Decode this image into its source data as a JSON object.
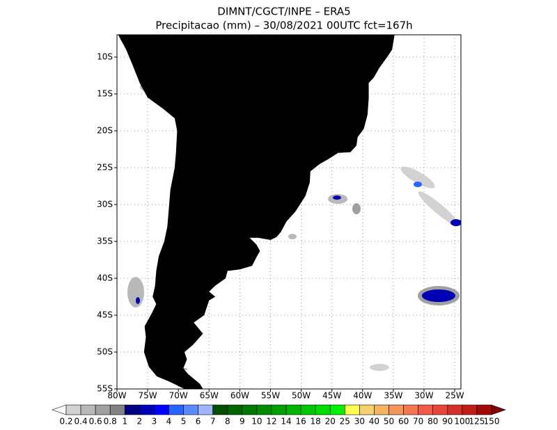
{
  "header": {
    "line1": "DIMNT/CGCT/INPE –  ERA5",
    "line2": "Precipitacao (mm) – 30/08/2021 00UTC fct=167h"
  },
  "map": {
    "lat_labels": [
      "10S",
      "15S",
      "20S",
      "25S",
      "30S",
      "35S",
      "40S",
      "45S",
      "50S",
      "55S"
    ],
    "lon_labels": [
      "80W",
      "75W",
      "70W",
      "65W",
      "60W",
      "55W",
      "50W",
      "45W",
      "40W",
      "35W",
      "30W",
      "25W"
    ]
  },
  "colorbar": {
    "labels": [
      "0.2",
      "0.4",
      "0.6",
      "0.8",
      "1",
      "2",
      "3",
      "4",
      "5",
      "6",
      "7",
      "8",
      "9",
      "10",
      "12",
      "14",
      "16",
      "18",
      "20",
      "25",
      "30",
      "40",
      "50",
      "60",
      "70",
      "80",
      "90",
      "100",
      "125",
      "150"
    ],
    "colors": [
      "#ffffff",
      "#d2d2d2",
      "#b9b9b9",
      "#a0a0a0",
      "#828282",
      "#000080",
      "#0000b4",
      "#0000ff",
      "#2864ff",
      "#5a8cff",
      "#a0b4ff",
      "#005000",
      "#006400",
      "#007800",
      "#008c00",
      "#00a000",
      "#00b400",
      "#00c800",
      "#00dc00",
      "#00f000",
      "#ffff50",
      "#f5d26e",
      "#f5b464",
      "#f5965a",
      "#f57850",
      "#f05a46",
      "#e6463c",
      "#d23228",
      "#be1e14",
      "#a00a0a",
      "#820000"
    ]
  }
}
